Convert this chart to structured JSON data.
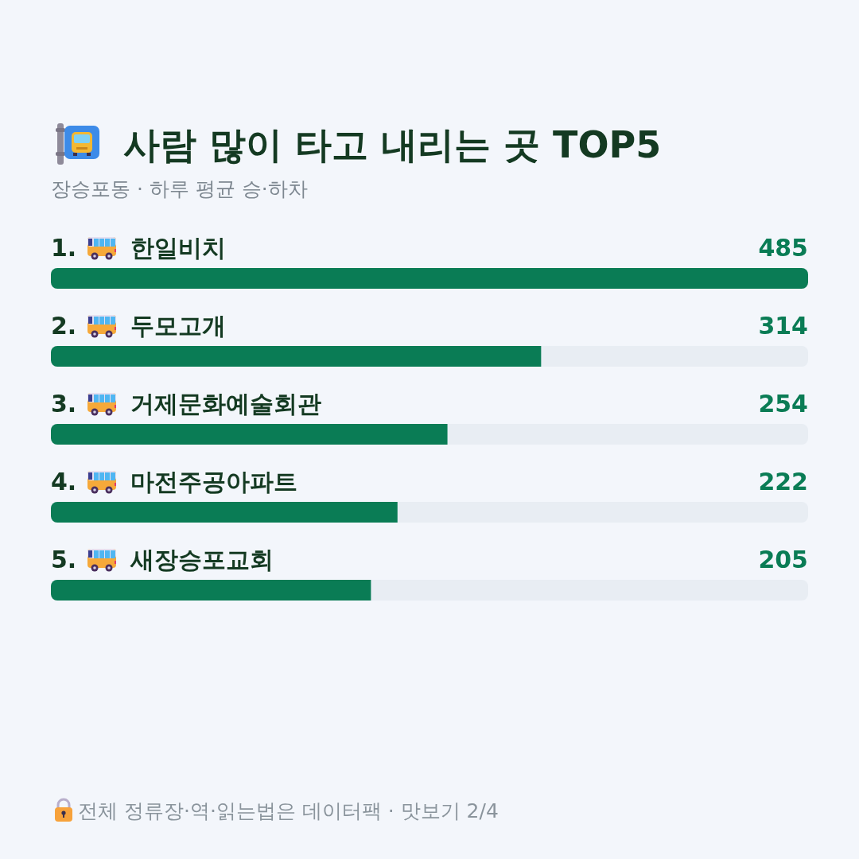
{
  "chart_data": {
    "type": "bar",
    "orientation": "horizontal",
    "title": "사람 많이 타고 내리는 곳 TOP5",
    "subtitle": "장승포동 · 하루 평균 승·하차",
    "categories": [
      "1. 한일비치",
      "2. 두모고개",
      "3. 거제문화예술회관",
      "4. 마전주공아파트",
      "5. 새장승포교회"
    ],
    "series": [
      {
        "color": "#0a7c55",
        "values": [
          485,
          314,
          254,
          222,
          205
        ]
      }
    ],
    "xlim": [
      0,
      485
    ],
    "data_labels": true,
    "annotations": [
      "전체 정류장·역·읽는법은 데이터팩 · 맛보기 2/4"
    ]
  }
}
